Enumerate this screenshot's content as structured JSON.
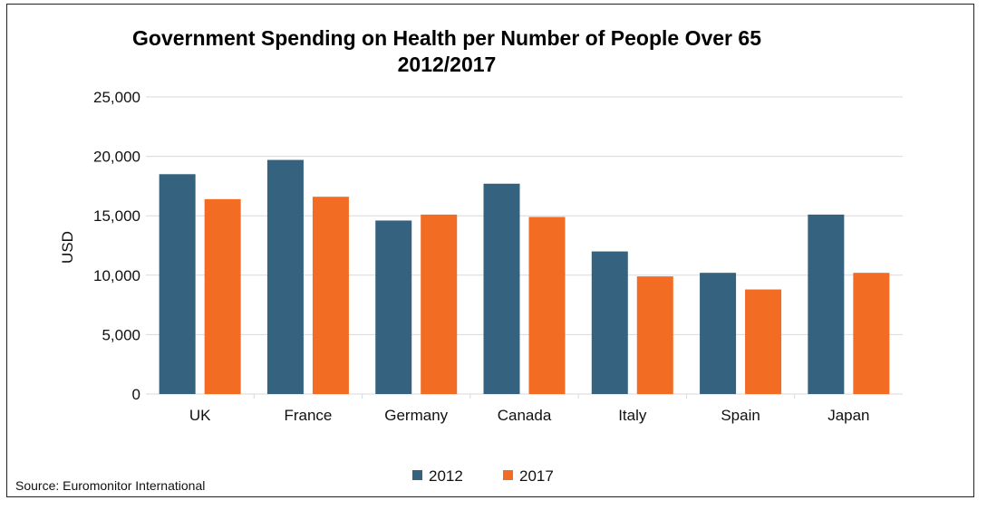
{
  "chart_data": {
    "type": "bar",
    "title": "Government Spending on Health per Number of People Over 65",
    "subtitle": "2012/2017",
    "xlabel": "",
    "ylabel": "USD",
    "ylim": [
      0,
      25000
    ],
    "yticks": [
      0,
      5000,
      10000,
      15000,
      20000,
      25000
    ],
    "ytick_labels": [
      "0",
      "5,000",
      "10,000",
      "15,000",
      "20,000",
      "25,000"
    ],
    "grid": true,
    "legend_position": "bottom",
    "categories": [
      "UK",
      "France",
      "Germany",
      "Canada",
      "Italy",
      "Spain",
      "Japan"
    ],
    "series": [
      {
        "name": "2012",
        "color": "#35627E",
        "values": [
          18500,
          19700,
          14600,
          17700,
          12000,
          10200,
          15100
        ]
      },
      {
        "name": "2017",
        "color": "#F26C24",
        "values": [
          16400,
          16600,
          15100,
          14900,
          9900,
          8800,
          10200
        ]
      }
    ],
    "source": "Source: Euromonitor International"
  }
}
